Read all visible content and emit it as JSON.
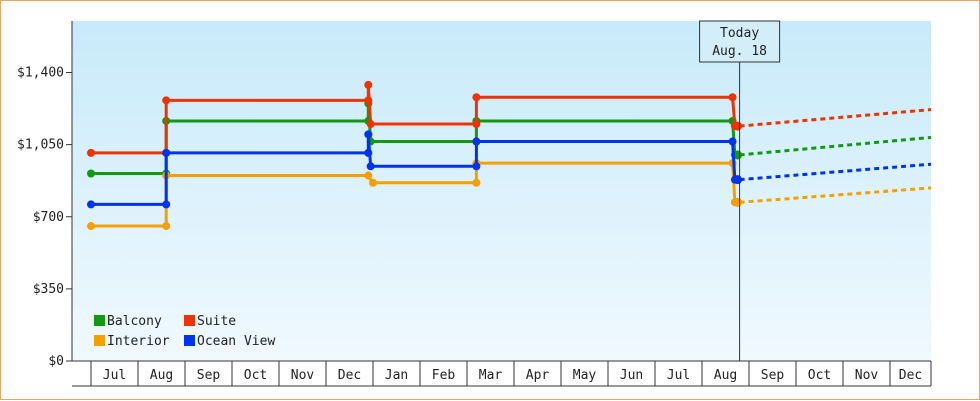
{
  "chart_data": {
    "type": "line",
    "step": true,
    "y_ticks": [
      "$0",
      "$350",
      "$700",
      "$1,050",
      "$1,400"
    ],
    "y_tick_values": [
      0,
      350,
      700,
      1050,
      1400
    ],
    "ylim": [
      0,
      1650
    ],
    "months": [
      "Jul",
      "Aug",
      "Sep",
      "Oct",
      "Nov",
      "Dec",
      "Jan",
      "Feb",
      "Mar",
      "Apr",
      "May",
      "Jun",
      "Jul",
      "Aug",
      "Sep",
      "Oct",
      "Nov",
      "Dec"
    ],
    "today_label_1": "Today",
    "today_label_2": "Aug. 18",
    "today_x": 13.8,
    "grid": false,
    "legend": "bottom-left",
    "series": [
      {
        "name": "Balcony",
        "color": "#119911",
        "points": [
          [
            0,
            910
          ],
          [
            1.6,
            910
          ],
          [
            1.6,
            1165
          ],
          [
            5.9,
            1165
          ],
          [
            5.9,
            1250
          ],
          [
            5.95,
            1065
          ],
          [
            8.2,
            1065
          ],
          [
            8.2,
            1165
          ],
          [
            13.65,
            1165
          ],
          [
            13.7,
            1000
          ]
        ],
        "trend": [
          [
            13.8,
            1000
          ],
          [
            18.6,
            1085
          ]
        ]
      },
      {
        "name": "Suite",
        "color": "#ee3300",
        "points": [
          [
            0,
            1010
          ],
          [
            1.6,
            1010
          ],
          [
            1.6,
            1265
          ],
          [
            5.9,
            1265
          ],
          [
            5.9,
            1340
          ],
          [
            5.95,
            1150
          ],
          [
            8.2,
            1150
          ],
          [
            8.2,
            1280
          ],
          [
            13.65,
            1280
          ],
          [
            13.7,
            1140
          ]
        ],
        "trend": [
          [
            13.8,
            1140
          ],
          [
            18.6,
            1220
          ]
        ]
      },
      {
        "name": "Interior",
        "color": "#f5a000",
        "points": [
          [
            0,
            655
          ],
          [
            1.6,
            655
          ],
          [
            1.6,
            900
          ],
          [
            5.9,
            900
          ],
          [
            6.0,
            865
          ],
          [
            8.2,
            865
          ],
          [
            8.2,
            960
          ],
          [
            13.65,
            960
          ],
          [
            13.7,
            770
          ]
        ],
        "trend": [
          [
            13.8,
            770
          ],
          [
            18.6,
            840
          ]
        ]
      },
      {
        "name": "Ocean View",
        "color": "#0033ee",
        "points": [
          [
            0,
            760
          ],
          [
            1.6,
            760
          ],
          [
            1.6,
            1010
          ],
          [
            5.9,
            1010
          ],
          [
            5.9,
            1100
          ],
          [
            5.95,
            945
          ],
          [
            8.2,
            945
          ],
          [
            8.2,
            1065
          ],
          [
            13.65,
            1065
          ],
          [
            13.7,
            880
          ]
        ],
        "trend": [
          [
            13.8,
            880
          ],
          [
            18.6,
            955
          ]
        ]
      }
    ]
  }
}
